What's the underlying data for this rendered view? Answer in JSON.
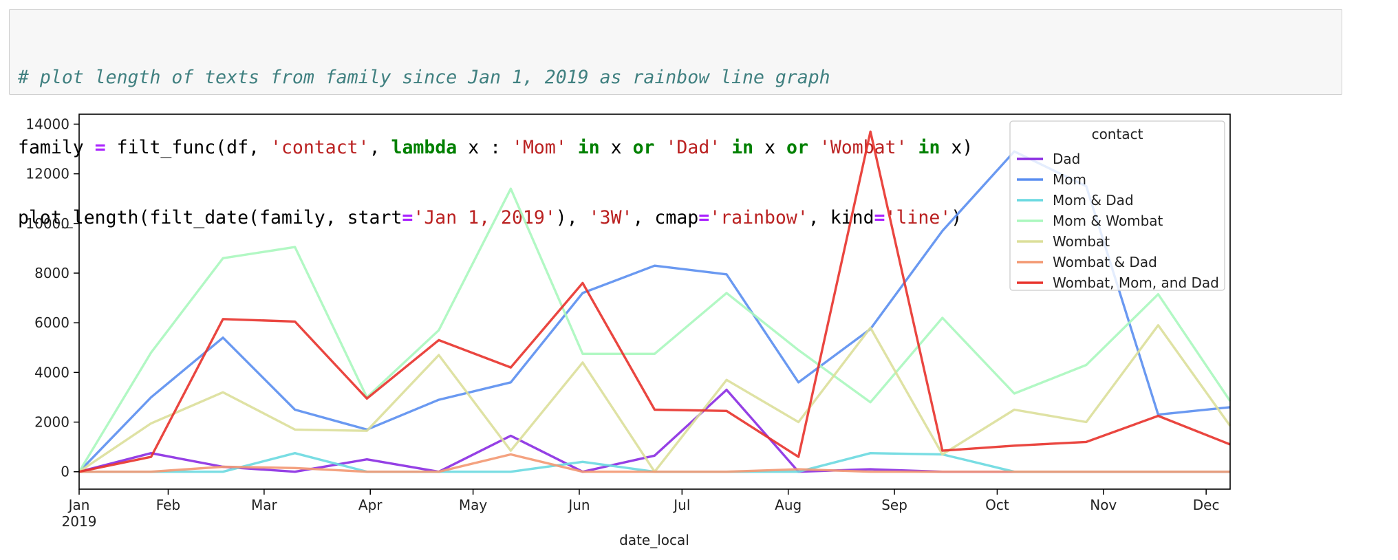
{
  "code_cell": {
    "lines": [
      [
        {
          "cls": "c-comment",
          "text": "# plot length of texts from family since Jan 1, 2019 as rainbow line graph"
        }
      ],
      [
        {
          "cls": "",
          "text": "family "
        },
        {
          "cls": "c-op",
          "text": "="
        },
        {
          "cls": "",
          "text": " filt_func(df, "
        },
        {
          "cls": "c-str",
          "text": "'contact'"
        },
        {
          "cls": "",
          "text": ", "
        },
        {
          "cls": "c-kw",
          "text": "lambda"
        },
        {
          "cls": "",
          "text": " x : "
        },
        {
          "cls": "c-str",
          "text": "'Mom'"
        },
        {
          "cls": "",
          "text": " "
        },
        {
          "cls": "c-kw",
          "text": "in"
        },
        {
          "cls": "",
          "text": " x "
        },
        {
          "cls": "c-kw",
          "text": "or"
        },
        {
          "cls": "",
          "text": " "
        },
        {
          "cls": "c-str",
          "text": "'Dad'"
        },
        {
          "cls": "",
          "text": " "
        },
        {
          "cls": "c-kw",
          "text": "in"
        },
        {
          "cls": "",
          "text": " x "
        },
        {
          "cls": "c-kw",
          "text": "or"
        },
        {
          "cls": "",
          "text": " "
        },
        {
          "cls": "c-str",
          "text": "'Wombat'"
        },
        {
          "cls": "",
          "text": " "
        },
        {
          "cls": "c-kw",
          "text": "in"
        },
        {
          "cls": "",
          "text": " x)"
        }
      ],
      [
        {
          "cls": "",
          "text": "plot_length(filt_date(family, start"
        },
        {
          "cls": "c-op",
          "text": "="
        },
        {
          "cls": "c-str",
          "text": "'Jan 1, 2019'"
        },
        {
          "cls": "",
          "text": "), "
        },
        {
          "cls": "c-str",
          "text": "'3W'"
        },
        {
          "cls": "",
          "text": ", cmap"
        },
        {
          "cls": "c-op",
          "text": "="
        },
        {
          "cls": "c-str",
          "text": "'rainbow'"
        },
        {
          "cls": "",
          "text": ", kind"
        },
        {
          "cls": "c-op",
          "text": "="
        },
        {
          "cls": "c-str",
          "text": "'line'"
        },
        {
          "cls": "",
          "text": ")"
        }
      ]
    ]
  },
  "chart_data": {
    "type": "line",
    "title": "",
    "xlabel": "date_local",
    "ylabel": "",
    "x": [
      "2019-01-06",
      "2019-01-27",
      "2019-02-17",
      "2019-03-10",
      "2019-03-31",
      "2019-04-21",
      "2019-05-12",
      "2019-06-02",
      "2019-06-23",
      "2019-07-14",
      "2019-08-04",
      "2019-08-25",
      "2019-09-15",
      "2019-10-06",
      "2019-10-27",
      "2019-11-17",
      "2019-12-08"
    ],
    "xlim": [
      "2019-01-06",
      "2019-12-08"
    ],
    "x_ticks": [
      {
        "date": "2019-01-06",
        "label": "Jan",
        "sublabel": "2019"
      },
      {
        "date": "2019-02-01",
        "label": "Feb"
      },
      {
        "date": "2019-03-01",
        "label": "Mar"
      },
      {
        "date": "2019-04-01",
        "label": "Apr"
      },
      {
        "date": "2019-05-01",
        "label": "May"
      },
      {
        "date": "2019-06-01",
        "label": "Jun"
      },
      {
        "date": "2019-07-01",
        "label": "Jul"
      },
      {
        "date": "2019-08-01",
        "label": "Aug"
      },
      {
        "date": "2019-09-01",
        "label": "Sep"
      },
      {
        "date": "2019-10-01",
        "label": "Oct"
      },
      {
        "date": "2019-11-01",
        "label": "Nov"
      },
      {
        "date": "2019-12-01",
        "label": "Dec"
      }
    ],
    "ylim": [
      -700,
      14400
    ],
    "y_ticks": [
      0,
      2000,
      4000,
      6000,
      8000,
      10000,
      12000,
      14000
    ],
    "grid": false,
    "legend": {
      "title": "contact",
      "placement": "top-right"
    },
    "series": [
      {
        "name": "Dad",
        "color": "#8a2be2",
        "values": [
          0,
          750,
          200,
          0,
          500,
          0,
          1450,
          0,
          650,
          3300,
          0,
          100,
          0,
          0,
          0,
          0,
          0
        ]
      },
      {
        "name": "Mom",
        "color": "#5a8ef0",
        "values": [
          0,
          3000,
          5400,
          2500,
          1700,
          2900,
          3600,
          7200,
          8300,
          7950,
          3600,
          5750,
          9700,
          12900,
          11500,
          2300,
          2600
        ]
      },
      {
        "name": "Mom & Dad",
        "color": "#6ad9e0",
        "values": [
          0,
          0,
          0,
          750,
          0,
          0,
          0,
          400,
          0,
          0,
          0,
          750,
          700,
          0,
          0,
          0,
          0
        ]
      },
      {
        "name": "Mom & Wombat",
        "color": "#aaf7be",
        "values": [
          0,
          4800,
          8600,
          9050,
          3000,
          5700,
          11400,
          4750,
          4750,
          7200,
          4900,
          2800,
          6200,
          3150,
          4300,
          7150,
          2850
        ]
      },
      {
        "name": "Wombat",
        "color": "#dcdf9a",
        "values": [
          0,
          1950,
          3200,
          1700,
          1650,
          4700,
          850,
          4400,
          0,
          3700,
          2000,
          5800,
          700,
          2500,
          2000,
          5900,
          1850
        ]
      },
      {
        "name": "Wombat & Dad",
        "color": "#f39872",
        "values": [
          0,
          0,
          200,
          150,
          0,
          0,
          700,
          0,
          0,
          0,
          100,
          0,
          0,
          0,
          0,
          0,
          0
        ]
      },
      {
        "name": "Wombat, Mom, and Dad",
        "color": "#e8322b",
        "values": [
          0,
          600,
          6150,
          6050,
          2950,
          5300,
          4200,
          7600,
          2500,
          2450,
          600,
          13700,
          850,
          1050,
          1200,
          2250,
          1100
        ]
      }
    ]
  }
}
